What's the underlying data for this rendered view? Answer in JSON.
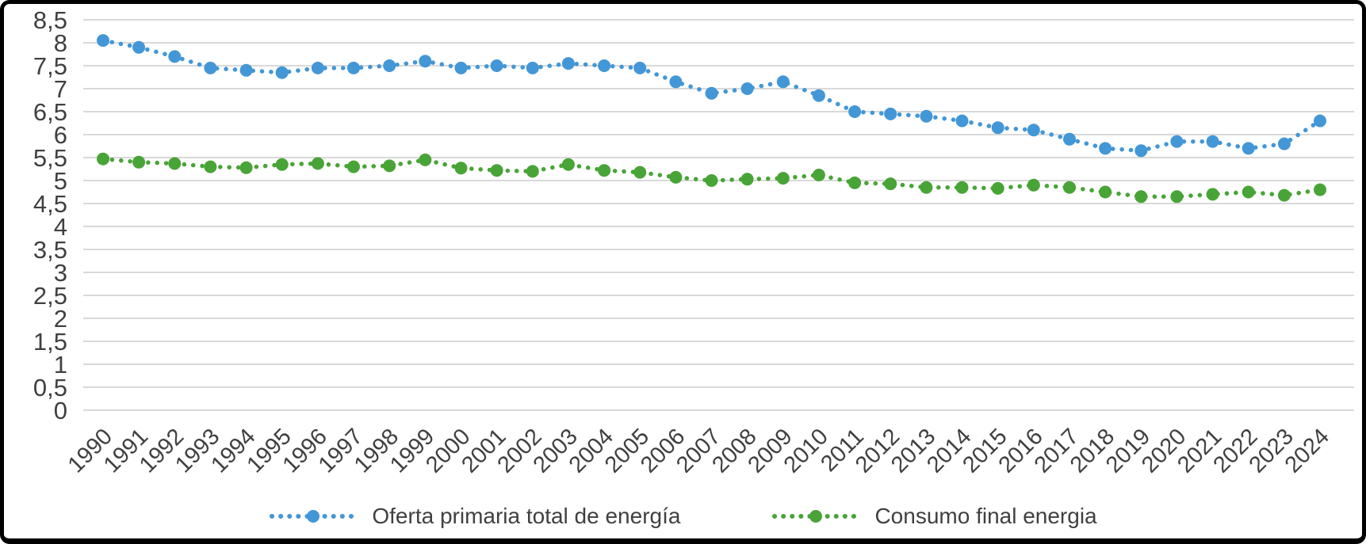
{
  "chart_data": {
    "type": "line",
    "title": "",
    "xlabel": "",
    "ylabel": "",
    "x": [
      "1990",
      "1991",
      "1992",
      "1993",
      "1994",
      "1995",
      "1996",
      "1997",
      "1998",
      "1999",
      "2000",
      "2001",
      "2002",
      "2003",
      "2004",
      "2005",
      "2006",
      "2007",
      "2008",
      "2009",
      "2010",
      "2011",
      "2012",
      "2013",
      "2014",
      "2015",
      "2016",
      "2017",
      "2018",
      "2019",
      "2020",
      "2021",
      "2022",
      "2023",
      "2024"
    ],
    "series": [
      {
        "name": "Oferta primaria total de energía",
        "color": "#4397D7",
        "line_style": "dotted",
        "marker": "circle",
        "values": [
          8.05,
          7.9,
          7.7,
          7.45,
          7.4,
          7.35,
          7.45,
          7.45,
          7.5,
          7.6,
          7.45,
          7.5,
          7.45,
          7.55,
          7.5,
          7.45,
          7.15,
          6.9,
          7.0,
          7.15,
          6.85,
          6.5,
          6.45,
          6.4,
          6.3,
          6.15,
          6.1,
          5.9,
          5.7,
          5.65,
          5.85,
          5.85,
          5.7,
          5.8,
          6.3
        ]
      },
      {
        "name": "Consumo final energia",
        "color": "#49A437",
        "line_style": "dotted",
        "marker": "circle",
        "values": [
          5.47,
          5.4,
          5.37,
          5.3,
          5.28,
          5.35,
          5.37,
          5.3,
          5.32,
          5.45,
          5.27,
          5.22,
          5.2,
          5.35,
          5.22,
          5.18,
          5.07,
          5.0,
          5.03,
          5.05,
          5.12,
          4.95,
          4.93,
          4.85,
          4.85,
          4.83,
          4.9,
          4.85,
          4.75,
          4.65,
          4.65,
          4.7,
          4.75,
          4.68,
          4.8
        ]
      }
    ],
    "ylim": [
      0,
      8.5
    ],
    "ytick_step": 0.5,
    "ytick_labels": [
      "0",
      "0,5",
      "1",
      "1,5",
      "2",
      "2,5",
      "3",
      "3,5",
      "4",
      "4,5",
      "5",
      "5,5",
      "6",
      "6,5",
      "7",
      "7,5",
      "8",
      "8,5"
    ],
    "decimal_separator": ",",
    "grid": "horizontal",
    "gridline_color": "#D9D9D9",
    "axis_text_color": "#404040",
    "legend_position": "bottom",
    "x_label_rotation_deg": -45
  }
}
